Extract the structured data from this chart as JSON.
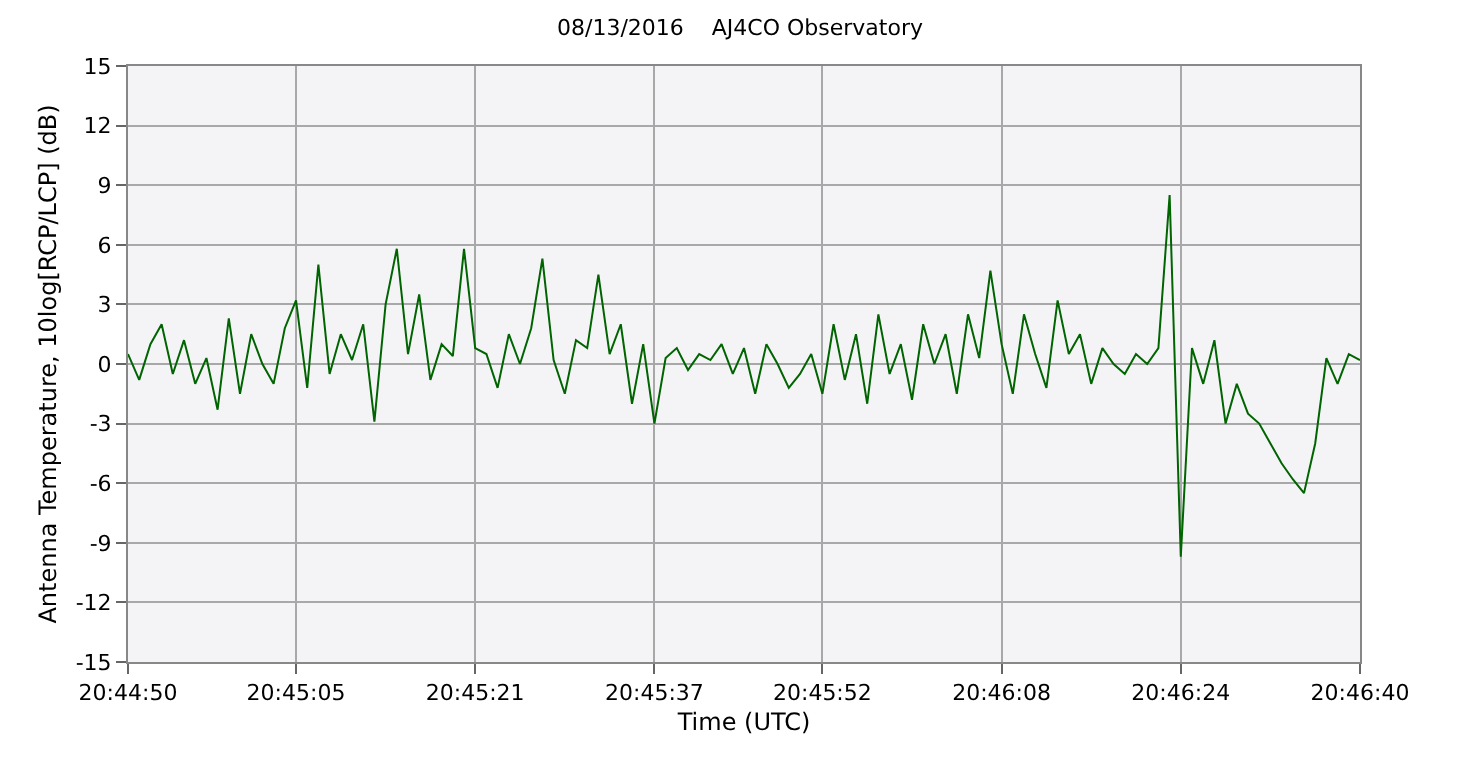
{
  "chart_data": {
    "type": "line",
    "title": "08/13/2016    AJ4CO Observatory",
    "xlabel": "Time (UTC)",
    "ylabel": "Antenna Temperature, 10log[RCP/LCP] (dB)",
    "xlim": [
      20.747222,
      20.777778
    ],
    "xticks": [
      {
        "value": 20.747222,
        "label": "20:44:50"
      },
      {
        "value": 20.751389,
        "label": "20:45:05"
      },
      {
        "value": 20.755833,
        "label": "20:45:21"
      },
      {
        "value": 20.760278,
        "label": "20:45:37"
      },
      {
        "value": 20.764444,
        "label": "20:45:52"
      },
      {
        "value": 20.768889,
        "label": "20:46:08"
      },
      {
        "value": 20.773333,
        "label": "20:46:24"
      },
      {
        "value": 20.777778,
        "label": "20:46:40"
      }
    ],
    "ylim": [
      -15,
      15
    ],
    "yticks": [
      -15,
      -12,
      -9,
      -6,
      -3,
      0,
      3,
      6,
      9,
      12,
      15
    ],
    "grid": true,
    "marker": "none",
    "line_style": "solid",
    "series": [
      {
        "color": "#006400",
        "x": [
          20.747222,
          20.7475,
          20.747778,
          20.748056,
          20.748333,
          20.748611,
          20.748889,
          20.749167,
          20.749444,
          20.749722,
          20.75,
          20.750278,
          20.750556,
          20.750833,
          20.751111,
          20.751389,
          20.751667,
          20.751944,
          20.752222,
          20.7525,
          20.752778,
          20.753056,
          20.753333,
          20.753611,
          20.753889,
          20.754167,
          20.754444,
          20.754722,
          20.755,
          20.755278,
          20.755556,
          20.755833,
          20.756111,
          20.756389,
          20.756667,
          20.756944,
          20.757222,
          20.7575,
          20.757778,
          20.758056,
          20.758333,
          20.758611,
          20.758889,
          20.759167,
          20.759444,
          20.759722,
          20.76,
          20.760278,
          20.760556,
          20.760833,
          20.761111,
          20.761389,
          20.761667,
          20.761944,
          20.762222,
          20.7625,
          20.762778,
          20.763056,
          20.763333,
          20.763611,
          20.763889,
          20.764167,
          20.764444,
          20.764722,
          20.765,
          20.765278,
          20.765556,
          20.765833,
          20.766111,
          20.766389,
          20.766667,
          20.766944,
          20.767222,
          20.7675,
          20.767778,
          20.768056,
          20.768333,
          20.768611,
          20.768889,
          20.769167,
          20.769444,
          20.769722,
          20.77,
          20.770278,
          20.770556,
          20.770833,
          20.771111,
          20.771389,
          20.771667,
          20.771944,
          20.772222,
          20.7725,
          20.772778,
          20.773056,
          20.773333,
          20.773611,
          20.773889,
          20.774167,
          20.774444,
          20.774722,
          20.775,
          20.775278,
          20.775556,
          20.775833,
          20.776111,
          20.776389,
          20.776667,
          20.776944,
          20.777222,
          20.7775,
          20.777778
        ],
        "values": [
          0.5,
          -0.8,
          1.0,
          2.0,
          -0.5,
          1.2,
          -1.0,
          0.3,
          -2.3,
          2.3,
          -1.5,
          1.5,
          0.0,
          -1.0,
          1.8,
          3.2,
          -1.2,
          5.0,
          -0.5,
          1.5,
          0.2,
          2.0,
          -2.9,
          3.0,
          5.8,
          0.5,
          3.5,
          -0.8,
          1.0,
          0.4,
          5.8,
          0.8,
          0.5,
          -1.2,
          1.5,
          0.0,
          1.8,
          5.3,
          0.2,
          -1.5,
          1.2,
          0.8,
          4.5,
          0.5,
          2.0,
          -2.0,
          1.0,
          -3.0,
          0.3,
          0.8,
          -0.3,
          0.5,
          0.2,
          1.0,
          -0.5,
          0.8,
          -1.5,
          1.0,
          0.0,
          -1.2,
          -0.5,
          0.5,
          -1.5,
          2.0,
          -0.8,
          1.5,
          -2.0,
          2.5,
          -0.5,
          1.0,
          -1.8,
          2.0,
          0.0,
          1.5,
          -1.5,
          2.5,
          0.3,
          4.7,
          1.0,
          -1.5,
          2.5,
          0.5,
          -1.2,
          3.2,
          0.5,
          1.5,
          -1.0,
          0.8,
          0.0,
          -0.5,
          0.5,
          0.0,
          0.8,
          8.5,
          -9.7,
          0.8,
          -1.0,
          1.2,
          -3.0,
          -1.0,
          -2.5,
          -3.0,
          -4.0,
          -5.0,
          -5.8,
          -6.5,
          -4.0,
          0.3,
          -1.0,
          0.5,
          0.2
        ]
      }
    ]
  }
}
